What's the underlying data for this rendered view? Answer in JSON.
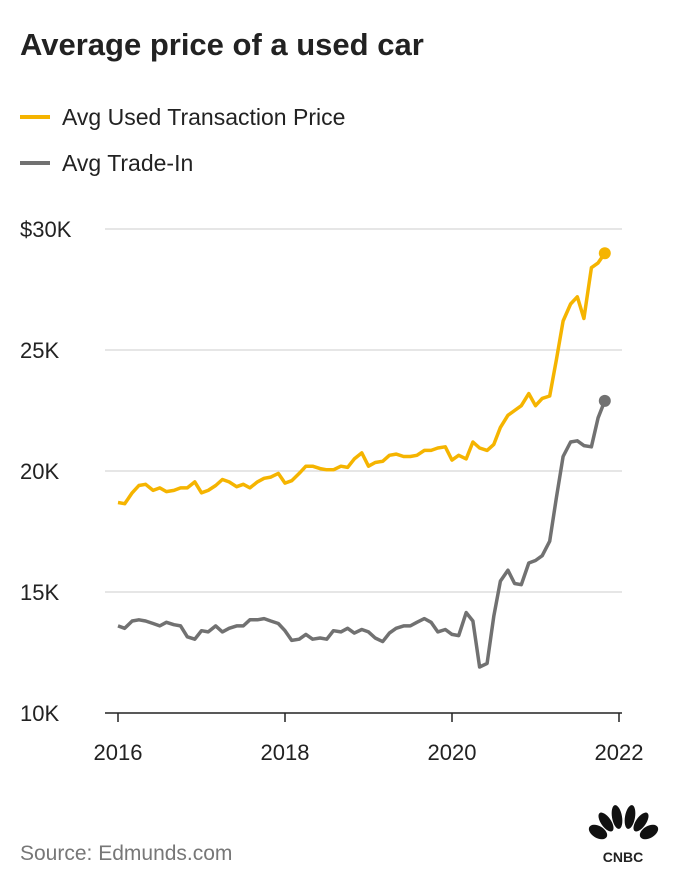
{
  "chart_data": {
    "type": "line",
    "title": "Average price of a used car",
    "source": "Source: Edmunds.com",
    "logo": "CNBC",
    "x": [
      2016,
      2016.08,
      2016.17,
      2016.25,
      2016.33,
      2016.42,
      2016.5,
      2016.58,
      2016.67,
      2016.75,
      2016.83,
      2016.92,
      2017,
      2017.08,
      2017.17,
      2017.25,
      2017.33,
      2017.42,
      2017.5,
      2017.58,
      2017.67,
      2017.75,
      2017.83,
      2017.92,
      2018,
      2018.08,
      2018.17,
      2018.25,
      2018.33,
      2018.42,
      2018.5,
      2018.58,
      2018.67,
      2018.75,
      2018.83,
      2018.92,
      2019,
      2019.08,
      2019.17,
      2019.25,
      2019.33,
      2019.42,
      2019.5,
      2019.58,
      2019.67,
      2019.75,
      2019.83,
      2019.92,
      2020,
      2020.08,
      2020.17,
      2020.25,
      2020.33,
      2020.42,
      2020.5,
      2020.58,
      2020.67,
      2020.75,
      2020.83,
      2020.92,
      2021,
      2021.08,
      2021.17,
      2021.25,
      2021.33,
      2021.42,
      2021.5,
      2021.58,
      2021.67,
      2021.75,
      2021.83
    ],
    "series": [
      {
        "name": "Avg Used Transaction Price",
        "color": "#f5b400",
        "values": [
          18700,
          18650,
          19100,
          19400,
          19450,
          19200,
          19300,
          19150,
          19200,
          19300,
          19300,
          19550,
          19100,
          19200,
          19400,
          19650,
          19550,
          19350,
          19450,
          19300,
          19550,
          19700,
          19750,
          19900,
          19500,
          19600,
          19900,
          20200,
          20200,
          20100,
          20050,
          20050,
          20200,
          20150,
          20500,
          20750,
          20200,
          20350,
          20400,
          20650,
          20700,
          20600,
          20600,
          20650,
          20850,
          20850,
          20950,
          21000,
          20450,
          20650,
          20500,
          21200,
          20950,
          20850,
          21100,
          21800,
          22300,
          22500,
          22700,
          23200,
          22700,
          23000,
          23100,
          24600,
          26200,
          26900,
          27200,
          26300,
          28400,
          28600,
          29000
        ]
      },
      {
        "name": "Avg Trade-In",
        "color": "#717171",
        "values": [
          13600,
          13500,
          13800,
          13850,
          13800,
          13700,
          13600,
          13750,
          13650,
          13600,
          13150,
          13050,
          13400,
          13350,
          13600,
          13350,
          13500,
          13600,
          13600,
          13850,
          13850,
          13900,
          13800,
          13700,
          13400,
          13000,
          13050,
          13250,
          13050,
          13100,
          13050,
          13400,
          13350,
          13500,
          13300,
          13450,
          13350,
          13100,
          12950,
          13300,
          13500,
          13600,
          13600,
          13750,
          13900,
          13750,
          13350,
          13450,
          13250,
          13200,
          14150,
          13800,
          11900,
          12050,
          14000,
          15450,
          15900,
          15350,
          15300,
          16200,
          16300,
          16500,
          17100,
          18900,
          20600,
          21200,
          21250,
          21050,
          21000,
          22200,
          22900
        ]
      }
    ],
    "xlim": [
      2015.8,
      2022
    ],
    "xticks": [
      2016,
      2018,
      2020,
      2022
    ],
    "ylim": [
      10000,
      30000
    ],
    "yticks": [
      {
        "value": 10000,
        "label": "10K"
      },
      {
        "value": 15000,
        "label": "15K"
      },
      {
        "value": 20000,
        "label": "20K"
      },
      {
        "value": 25000,
        "label": "25K"
      },
      {
        "value": 30000,
        "label": "$30K"
      }
    ],
    "grid": true
  }
}
